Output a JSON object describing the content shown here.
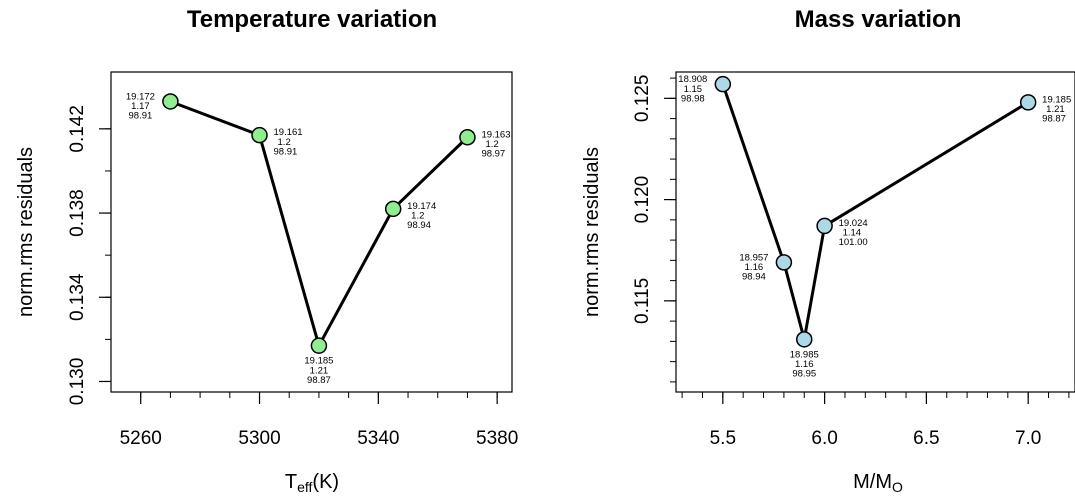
{
  "chart_data": [
    {
      "type": "line",
      "title": "Temperature variation",
      "xlabel": {
        "main": "T",
        "sub": "eff",
        "suffix": "(K)"
      },
      "ylabel": "norm.rms residuals",
      "xlim": [
        5250,
        5385
      ],
      "ylim": [
        0.1295,
        0.1447
      ],
      "xticks": [
        5260,
        5300,
        5340,
        5380
      ],
      "xticks_minor": [
        5260,
        5270,
        5280,
        5290,
        5300,
        5310,
        5320,
        5330,
        5340,
        5350,
        5360,
        5370,
        5380
      ],
      "yticks": [
        0.13,
        0.134,
        0.138,
        0.142
      ],
      "yticks_minor": [
        0.13,
        0.132,
        0.134,
        0.136,
        0.138,
        0.14,
        0.142
      ],
      "xtick_labels": [
        "5260",
        "5300",
        "5340",
        "5380"
      ],
      "ytick_labels": [
        "0.130",
        "0.134",
        "0.138",
        "0.142"
      ],
      "point_color": "#90ee90",
      "x": [
        5270,
        5300,
        5320,
        5345,
        5370
      ],
      "y": [
        0.1433,
        0.1417,
        0.1317,
        0.1382,
        0.1416
      ],
      "point_labels": [
        {
          "lines": [
            "19.172",
            "1.17",
            "98.91"
          ],
          "side": "left"
        },
        {
          "lines": [
            "19.161",
            "1.2",
            "98.91"
          ],
          "side": "right"
        },
        {
          "lines": [
            "19.185",
            "1.21",
            "98.87"
          ],
          "side": "below"
        },
        {
          "lines": [
            "19.174",
            "1.2",
            "98.94"
          ],
          "side": "right"
        },
        {
          "lines": [
            "19.163",
            "1.2",
            "98.97"
          ],
          "side": "right"
        }
      ]
    },
    {
      "type": "line",
      "title": "Mass variation",
      "xlabel": {
        "main": "M/M",
        "sub": "O",
        "suffix": ""
      },
      "ylabel": "norm.rms residuals",
      "xlim": [
        5.27,
        7.23
      ],
      "ylim": [
        0.1105,
        0.1263
      ],
      "xticks": [
        5.5,
        6.0,
        6.5,
        7.0
      ],
      "xticks_minor": [
        5.3,
        5.4,
        5.5,
        5.6,
        5.7,
        5.8,
        5.9,
        6.0,
        6.1,
        6.2,
        6.3,
        6.4,
        6.5,
        6.6,
        6.7,
        6.8,
        6.9,
        7.0,
        7.1,
        7.2
      ],
      "yticks": [
        0.115,
        0.12,
        0.125
      ],
      "yticks_minor": [
        0.111,
        0.112,
        0.113,
        0.114,
        0.115,
        0.116,
        0.117,
        0.118,
        0.119,
        0.12,
        0.121,
        0.122,
        0.123,
        0.124,
        0.125,
        0.126
      ],
      "xtick_labels": [
        "5.5",
        "6.0",
        "6.5",
        "7.0"
      ],
      "ytick_labels": [
        "0.115",
        "0.120",
        "0.125"
      ],
      "point_color": "#add8e6",
      "x": [
        5.5,
        5.8,
        5.9,
        6.0,
        7.0
      ],
      "y": [
        0.1257,
        0.1169,
        0.1131,
        0.1187,
        0.1248
      ],
      "point_labels": [
        {
          "lines": [
            "18.908",
            "1.15",
            "98.98"
          ],
          "side": "left"
        },
        {
          "lines": [
            "18.957",
            "1.16",
            "98.94"
          ],
          "side": "left"
        },
        {
          "lines": [
            "18.985",
            "1.16",
            "98.95"
          ],
          "side": "below"
        },
        {
          "lines": [
            "19.024",
            "1.14",
            "101.00"
          ],
          "side": "right"
        },
        {
          "lines": [
            "19.185",
            "1.21",
            "98.87"
          ],
          "side": "right"
        }
      ]
    }
  ]
}
